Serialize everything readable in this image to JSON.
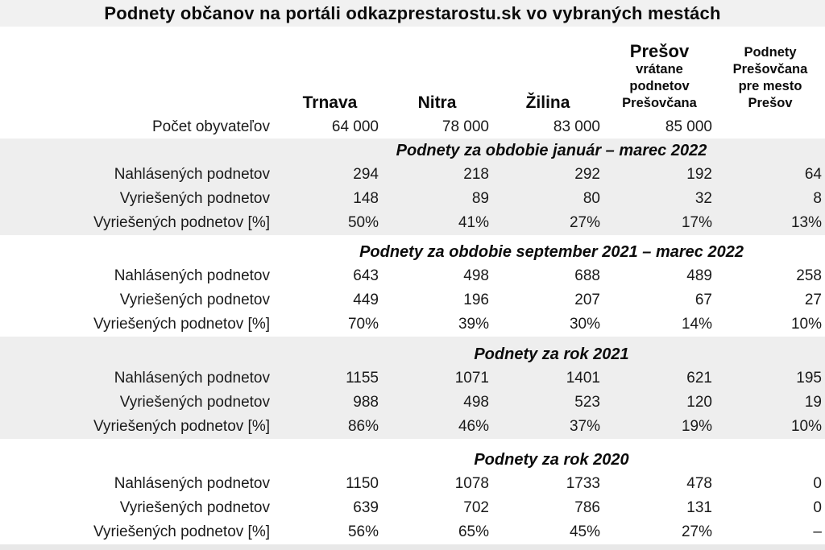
{
  "title": "Podnety občanov na portáli odkazprestarostu.sk vo vybraných mestách",
  "colors": {
    "title_bar_bg": "#f1f1f1",
    "section_band_bg": "#eeeeee",
    "bottom_strip_bg": "#e8e8e8",
    "text": "#1a1a1a"
  },
  "chart_data": {
    "type": "table",
    "title": "Podnety občanov na portáli odkazprestarostu.sk vo vybraných mestách",
    "columns": [
      {
        "label": "Trnava"
      },
      {
        "label": "Nitra"
      },
      {
        "label": "Žilina"
      },
      {
        "label": "Prešov",
        "sublabel": "vrátane podnetov Prešovčana"
      },
      {
        "label": "Podnety Prešovčana pre mesto Prešov"
      }
    ],
    "population_row": {
      "label": "Počet obyvateľov",
      "values": [
        "64 000",
        "78 000",
        "83 000",
        "85 000",
        ""
      ]
    },
    "sections": [
      {
        "header": "Podnety za obdobie január – marec 2022",
        "shaded": true,
        "rows": [
          {
            "label": "Nahlásených podnetov",
            "values": [
              "294",
              "218",
              "292",
              "192",
              "64"
            ]
          },
          {
            "label": "Vyriešených podnetov",
            "values": [
              "148",
              "89",
              "80",
              "32",
              "8"
            ]
          },
          {
            "label": "Vyriešených podnetov [%]",
            "values": [
              "50%",
              "41%",
              "27%",
              "17%",
              "13%"
            ]
          }
        ]
      },
      {
        "header": "Podnety za obdobie september 2021 – marec 2022",
        "shaded": false,
        "rows": [
          {
            "label": "Nahlásených podnetov",
            "values": [
              "643",
              "498",
              "688",
              "489",
              "258"
            ]
          },
          {
            "label": "Vyriešených podnetov",
            "values": [
              "449",
              "196",
              "207",
              "67",
              "27"
            ]
          },
          {
            "label": "Vyriešených podnetov [%]",
            "values": [
              "70%",
              "39%",
              "30%",
              "14%",
              "10%"
            ]
          }
        ]
      },
      {
        "header": "Podnety za rok 2021",
        "shaded": true,
        "rows": [
          {
            "label": "Nahlásených podnetov",
            "values": [
              "1155",
              "1071",
              "1401",
              "621",
              "195"
            ]
          },
          {
            "label": "Vyriešených podnetov",
            "values": [
              "988",
              "498",
              "523",
              "120",
              "19"
            ]
          },
          {
            "label": "Vyriešených podnetov [%]",
            "values": [
              "86%",
              "46%",
              "37%",
              "19%",
              "10%"
            ]
          }
        ]
      },
      {
        "header": "Podnety za rok 2020",
        "shaded": false,
        "rows": [
          {
            "label": "Nahlásených podnetov",
            "values": [
              "1150",
              "1078",
              "1733",
              "478",
              "0"
            ]
          },
          {
            "label": "Vyriešených podnetov",
            "values": [
              "639",
              "702",
              "786",
              "131",
              "0"
            ]
          },
          {
            "label": "Vyriešených podnetov [%]",
            "values": [
              "56%",
              "65%",
              "45%",
              "27%",
              "–"
            ]
          }
        ]
      }
    ]
  }
}
